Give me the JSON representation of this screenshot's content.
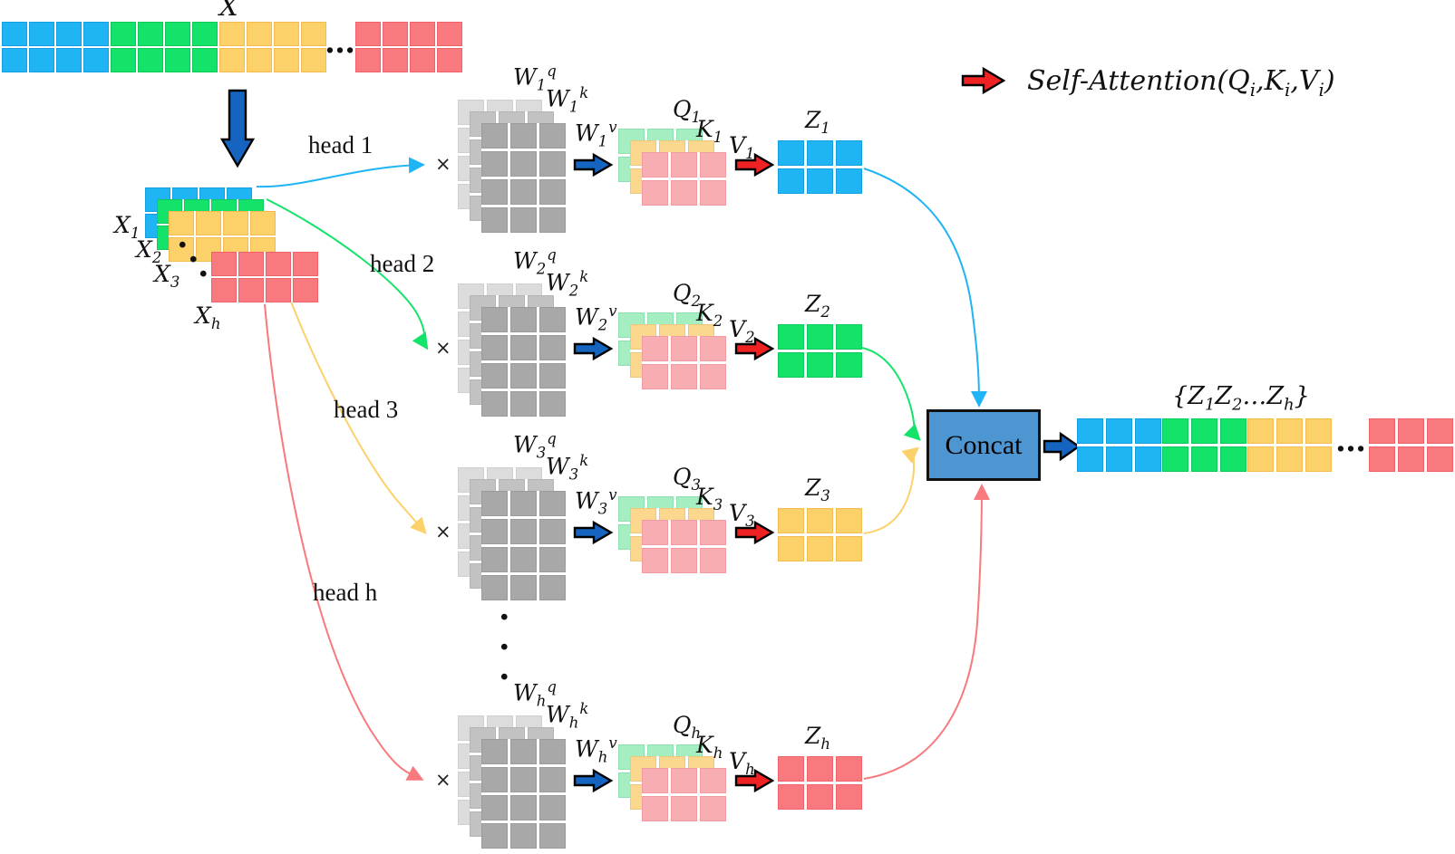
{
  "glyphs": {
    "times": "×",
    "hdots": "…",
    "dot": "·"
  },
  "input": {
    "label": "X"
  },
  "x_stack": {
    "labels": [
      {
        "b": "X",
        "sub": "1"
      },
      {
        "b": "X",
        "sub": "2"
      },
      {
        "b": "X",
        "sub": "3"
      },
      {
        "b": "X",
        "sub": "h"
      }
    ]
  },
  "heads": [
    {
      "label": "head 1",
      "w": [
        {
          "b": "W",
          "sub": "1",
          "sup": "q"
        },
        {
          "b": "W",
          "sub": "1",
          "sup": "k"
        },
        {
          "b": "W",
          "sub": "1",
          "sup": "v"
        }
      ],
      "q": {
        "b": "Q",
        "sub": "1"
      },
      "k": {
        "b": "K",
        "sub": "1"
      },
      "v": {
        "b": "V",
        "sub": "1"
      },
      "z": {
        "b": "Z",
        "sub": "1"
      }
    },
    {
      "label": "head 2",
      "w": [
        {
          "b": "W",
          "sub": "2",
          "sup": "q"
        },
        {
          "b": "W",
          "sub": "2",
          "sup": "k"
        },
        {
          "b": "W",
          "sub": "2",
          "sup": "v"
        }
      ],
      "q": {
        "b": "Q",
        "sub": "2"
      },
      "k": {
        "b": "K",
        "sub": "2"
      },
      "v": {
        "b": "V",
        "sub": "2"
      },
      "z": {
        "b": "Z",
        "sub": "2"
      }
    },
    {
      "label": "head 3",
      "w": [
        {
          "b": "W",
          "sub": "3",
          "sup": "q"
        },
        {
          "b": "W",
          "sub": "3",
          "sup": "k"
        },
        {
          "b": "W",
          "sub": "3",
          "sup": "v"
        }
      ],
      "q": {
        "b": "Q",
        "sub": "3"
      },
      "k": {
        "b": "K",
        "sub": "3"
      },
      "v": {
        "b": "V",
        "sub": "3"
      },
      "z": {
        "b": "Z",
        "sub": "3"
      }
    },
    {
      "label": "head h",
      "w": [
        {
          "b": "W",
          "sub": "h",
          "sup": "q"
        },
        {
          "b": "W",
          "sub": "h",
          "sup": "k"
        },
        {
          "b": "W",
          "sub": "h",
          "sup": "v"
        }
      ],
      "q": {
        "b": "Q",
        "sub": "h"
      },
      "k": {
        "b": "K",
        "sub": "h"
      },
      "v": {
        "b": "V",
        "sub": "h"
      },
      "z": {
        "b": "Z",
        "sub": "h"
      }
    }
  ],
  "concat": {
    "label": "Concat"
  },
  "output": {
    "p1": "{Z",
    "s1": "1",
    "p2": "Z",
    "s2": "2",
    "p3": "…Z",
    "s3": "h",
    "p4": "}"
  },
  "legend": {
    "p1": "Self-Attention(Q",
    "s1": "i",
    "p2": ",K",
    "s2": "i",
    "p3": ",V",
    "s3": "i",
    "p4": ")"
  },
  "colors": {
    "blue": "#1fb4f4",
    "blue_b": "#14a0e0",
    "green": "#14e36a",
    "green_b": "#0fc95c",
    "yellow": "#fdd169",
    "yellow_b": "#f2bd4e",
    "red": "#f8797e",
    "red_b": "#ef6269",
    "gray1": "#dcdcdc",
    "gray2": "#c2c2c2",
    "gray3": "#a8a8a8",
    "mint": "#a5eec2",
    "gold": "#fbd88d",
    "pink": "#f8adb2",
    "concat": "#4e96d1",
    "arrow_blue": "#1565c0",
    "arrow_red": "#ee2222"
  }
}
